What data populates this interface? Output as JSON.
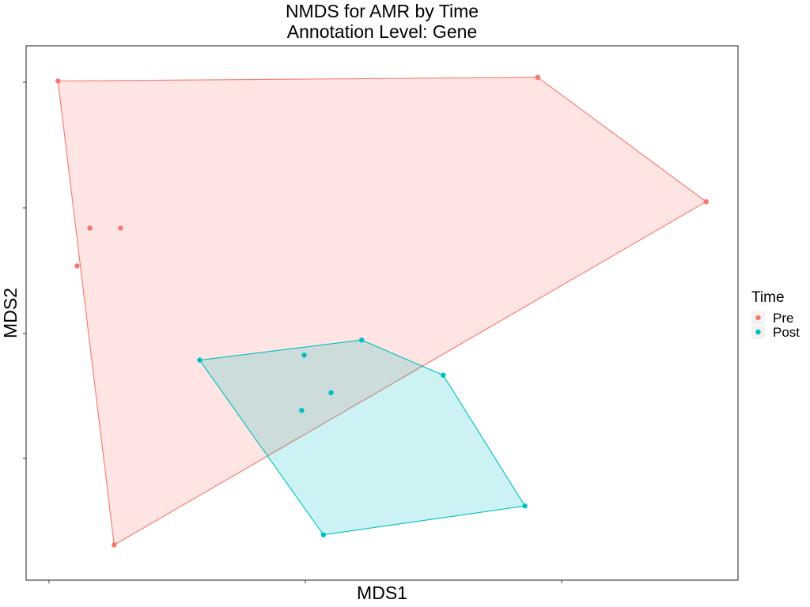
{
  "chart_data": {
    "type": "scatter",
    "title": "NMDS for AMR by Time",
    "subtitle": "Annotation Level: Gene",
    "xlabel": "MDS1",
    "ylabel": "MDS2",
    "xlim": [
      -0.92,
      1.87
    ],
    "ylim": [
      -2.05,
      2.2
    ],
    "grid": false,
    "hulls": true,
    "legend": {
      "title": "Time",
      "position": "right"
    },
    "series": [
      {
        "name": "Pre",
        "color": "#F8766D",
        "points": [
          [
            -0.795,
            1.92
          ],
          [
            1.085,
            1.95
          ],
          [
            1.745,
            0.96
          ],
          [
            -0.575,
            -1.77
          ],
          [
            -0.67,
            0.75
          ],
          [
            -0.55,
            0.75
          ],
          [
            -0.72,
            0.45
          ]
        ],
        "hull": [
          [
            -0.795,
            1.92
          ],
          [
            1.085,
            1.95
          ],
          [
            1.745,
            0.96
          ],
          [
            -0.575,
            -1.77
          ]
        ]
      },
      {
        "name": "Post",
        "color": "#00BFC4",
        "points": [
          [
            -0.24,
            -0.3
          ],
          [
            0.395,
            -0.14
          ],
          [
            0.715,
            -0.42
          ],
          [
            1.035,
            -1.46
          ],
          [
            0.245,
            -1.69
          ],
          [
            0.17,
            -0.26
          ],
          [
            0.275,
            -0.56
          ],
          [
            0.16,
            -0.7
          ]
        ],
        "hull": [
          [
            -0.24,
            -0.3
          ],
          [
            0.395,
            -0.14
          ],
          [
            0.715,
            -0.42
          ],
          [
            1.035,
            -1.46
          ],
          [
            0.245,
            -1.69
          ]
        ]
      }
    ]
  }
}
